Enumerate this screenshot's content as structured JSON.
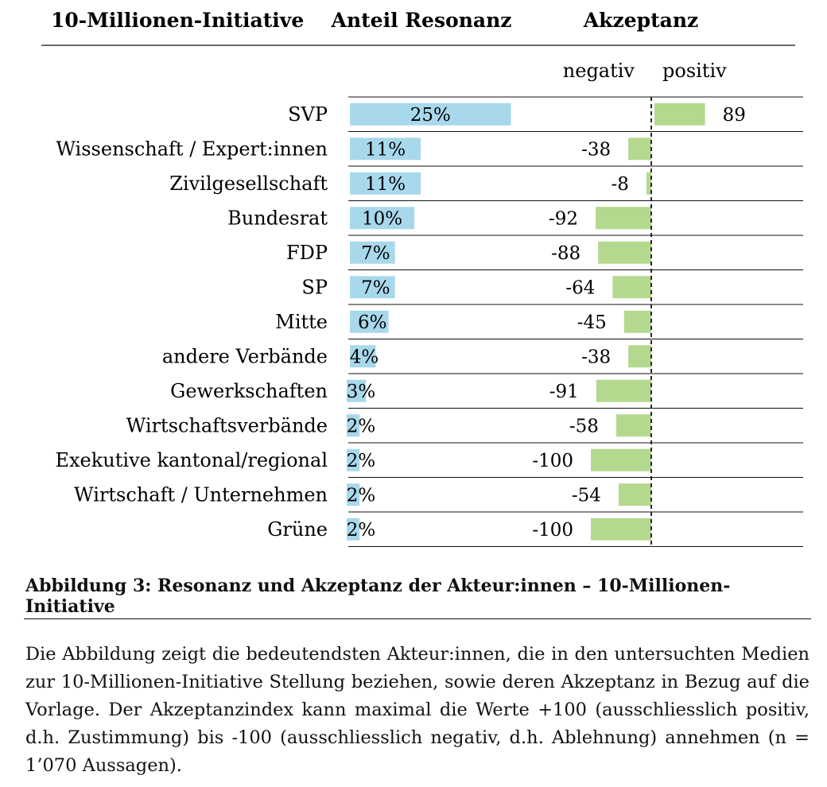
{
  "chart_data": {
    "type": "bar",
    "headers": {
      "topic": "10-Millionen-Initiative",
      "share": "Anteil Resonanz",
      "acceptance": "Akzeptanz"
    },
    "acceptance_sublabels": {
      "negative": "negativ",
      "positive": "positiv"
    },
    "categories": [
      "SVP",
      "Wissenschaft / Expert:innen",
      "Zivilgesellschaft",
      "Bundesrat",
      "FDP",
      "SP",
      "Mitte",
      "andere Verbände",
      "Gewerkschaften",
      "Wirtschaftsverbände",
      "Exekutive kantonal/regional",
      "Wirtschaft / Unternehmen",
      "Grüne"
    ],
    "series": [
      {
        "values": [
          25,
          11,
          11,
          10,
          7,
          7,
          6,
          4,
          3,
          2,
          2,
          2,
          2
        ],
        "labels": [
          "25%",
          "11%",
          "11%",
          "10%",
          "7%",
          "7%",
          "6%",
          "4%",
          "3%",
          "2%",
          "2%",
          "2%",
          "2%"
        ],
        "color": "#a8d8ec"
      },
      {
        "values": [
          89,
          -38,
          -8,
          -92,
          -88,
          -64,
          -45,
          -38,
          -91,
          -58,
          -100,
          -54,
          -100
        ],
        "labels": [
          "89",
          "-38",
          "-8",
          "-92",
          "-88",
          "-64",
          "-45",
          "-38",
          "-91",
          "-58",
          "-100",
          "-54",
          "-100"
        ],
        "color": "#b5d88f",
        "range": [
          -100,
          100
        ]
      }
    ]
  },
  "caption": {
    "title": "Abbildung 3: Resonanz und Akzeptanz der Akteur:innen – 10-Millionen-Initiative",
    "text": "Die Abbildung zeigt die bedeutendsten Akteur:innen, die in den untersuchten Medien zur 10-Millionen-Initiative Stellung beziehen, sowie deren Akzeptanz in Bezug auf die Vorlage. Der Akzeptanzindex kann maximal die Werte +100 (ausschliesslich positiv, d.h. Zustimmung) bis -100 (ausschliesslich negativ, d.h. Ablehnung) annehmen (n = 1’070 Aussagen)."
  }
}
